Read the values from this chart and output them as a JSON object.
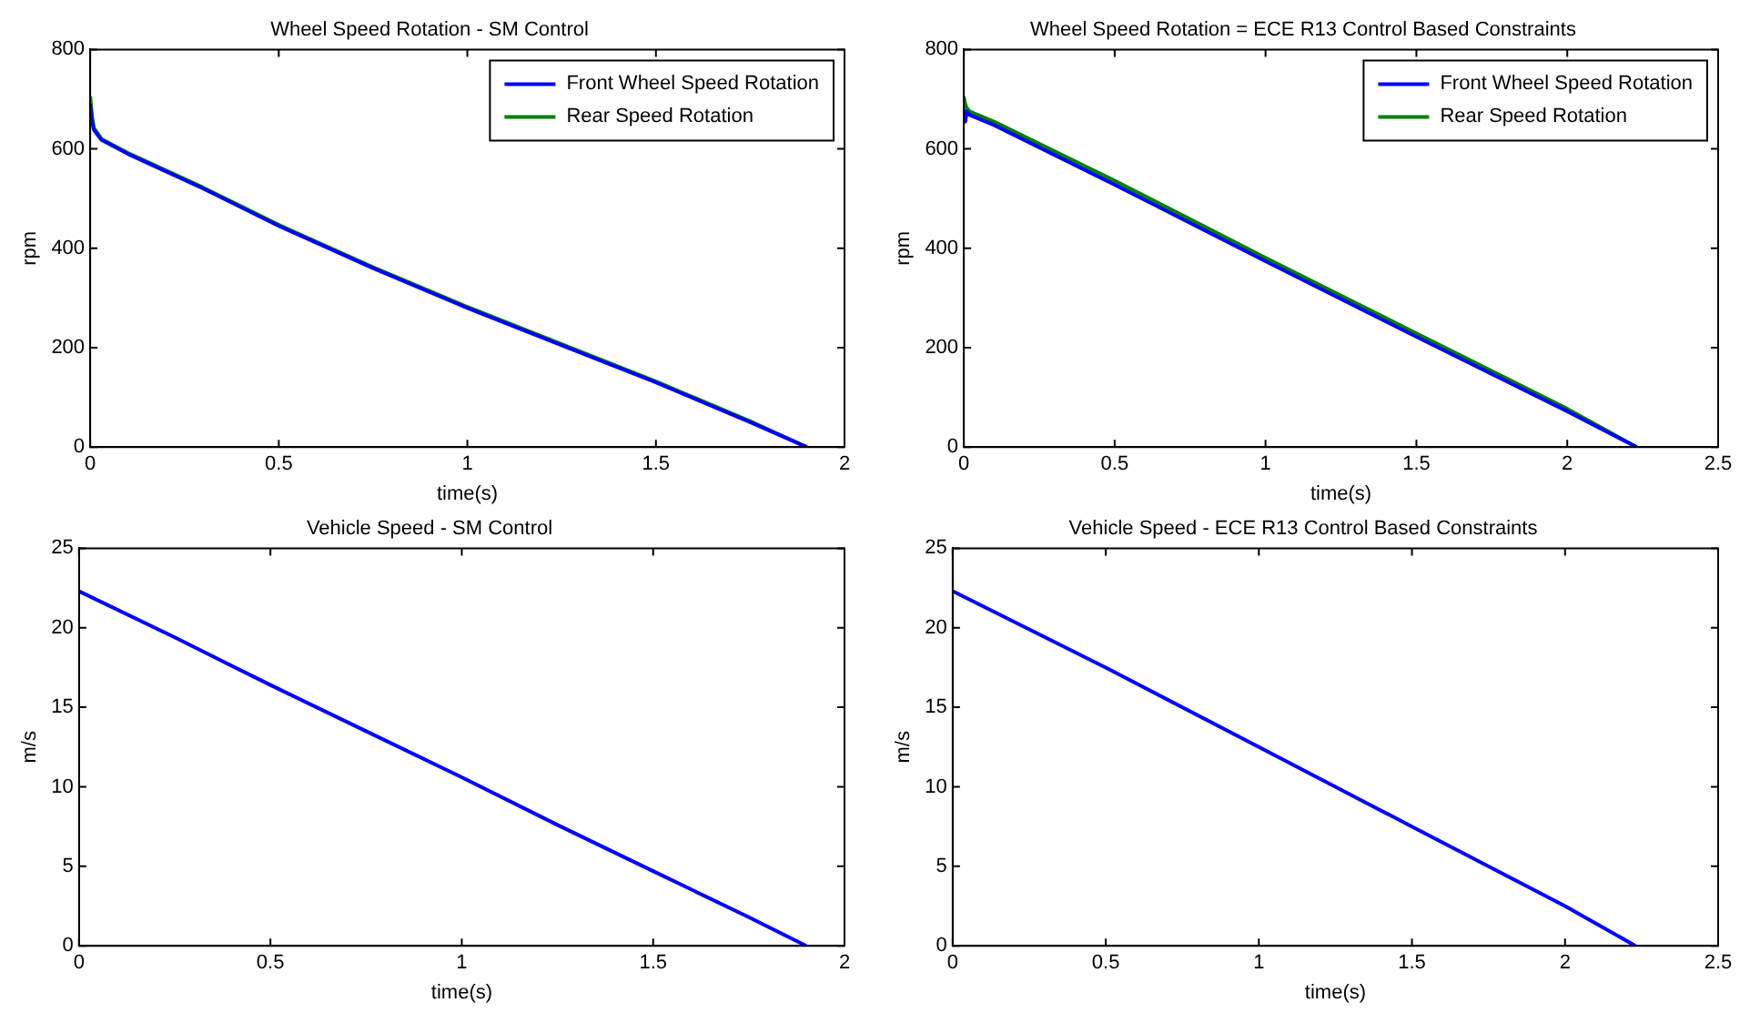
{
  "chart_data": [
    {
      "type": "line",
      "title": "Wheel Speed Rotation - SM Control",
      "xlabel": "time(s)",
      "ylabel": "rpm",
      "xlim": [
        0,
        2
      ],
      "xticks": [
        0,
        0.5,
        1,
        1.5,
        2
      ],
      "ylim": [
        0,
        800
      ],
      "yticks": [
        0,
        200,
        400,
        600,
        800
      ],
      "grid": false,
      "legend": "top right",
      "marker": "none",
      "line_style": "solid",
      "series": [
        {
          "name": "Front Wheel Speed Rotation",
          "color": "#0000ff",
          "x": [
            0,
            0.005,
            0.01,
            0.03,
            0.1,
            0.2,
            0.3,
            0.5,
            0.75,
            1,
            1.25,
            1.5,
            1.75,
            1.9
          ],
          "values": [
            690,
            655,
            638,
            618,
            590,
            555,
            520,
            445,
            360,
            280,
            205,
            130,
            50,
            0
          ]
        },
        {
          "name": "Rear Speed Rotation",
          "color": "#008000",
          "x": [
            0,
            0.005,
            0.01,
            0.03,
            0.1,
            0.2,
            0.3,
            0.5,
            0.75,
            1,
            1.25,
            1.5,
            1.75,
            1.9
          ],
          "values": [
            705,
            665,
            642,
            620,
            592,
            557,
            522,
            447,
            362,
            282,
            207,
            132,
            52,
            0
          ]
        }
      ]
    },
    {
      "type": "line",
      "title": "Wheel Speed Rotation = ECE R13 Control Based Constraints",
      "xlabel": "time(s)",
      "ylabel": "rpm",
      "xlim": [
        0,
        2.5
      ],
      "xticks": [
        0,
        0.5,
        1,
        1.5,
        2,
        2.5
      ],
      "ylim": [
        0,
        800
      ],
      "yticks": [
        0,
        200,
        400,
        600,
        800
      ],
      "grid": false,
      "legend": "top right",
      "marker": "none",
      "line_style": "solid",
      "series": [
        {
          "name": "Front Wheel Speed Rotation",
          "color": "#0000ff",
          "x": [
            0,
            0.005,
            0.01,
            0.02,
            0.1,
            0.5,
            1,
            1.5,
            2,
            2.23
          ],
          "values": [
            680,
            655,
            675,
            668,
            648,
            528,
            374,
            222,
            72,
            0
          ]
        },
        {
          "name": "Rear Speed Rotation",
          "color": "#008000",
          "x": [
            0,
            0.005,
            0.01,
            0.02,
            0.1,
            0.5,
            1,
            1.5,
            2,
            2.23
          ],
          "values": [
            705,
            690,
            682,
            675,
            655,
            536,
            381,
            229,
            77,
            0
          ]
        }
      ]
    },
    {
      "type": "line",
      "title": "Vehicle Speed - SM Control",
      "xlabel": "time(s)",
      "ylabel": "m/s",
      "xlim": [
        0,
        2
      ],
      "xticks": [
        0,
        0.5,
        1,
        1.5,
        2
      ],
      "ylim": [
        0,
        25
      ],
      "yticks": [
        0,
        5,
        10,
        15,
        20,
        25
      ],
      "grid": false,
      "legend": false,
      "marker": "none",
      "line_style": "solid",
      "series": [
        {
          "color": "#0000ff",
          "x": [
            0,
            0.25,
            0.5,
            0.75,
            1,
            1.25,
            1.5,
            1.75,
            1.9
          ],
          "values": [
            22.3,
            19.4,
            16.4,
            13.5,
            10.6,
            7.6,
            4.7,
            1.8,
            0
          ]
        }
      ]
    },
    {
      "type": "line",
      "title": "Vehicle Speed - ECE R13 Control Based Constraints",
      "xlabel": "time(s)",
      "ylabel": "m/s",
      "xlim": [
        0,
        2.5
      ],
      "xticks": [
        0,
        0.5,
        1,
        1.5,
        2,
        2.5
      ],
      "ylim": [
        0,
        25
      ],
      "yticks": [
        0,
        5,
        10,
        15,
        20,
        25
      ],
      "grid": false,
      "legend": false,
      "marker": "none",
      "line_style": "solid",
      "series": [
        {
          "color": "#0000ff",
          "x": [
            0,
            0.5,
            1,
            1.5,
            2,
            2.23
          ],
          "values": [
            22.3,
            17.5,
            12.5,
            7.5,
            2.5,
            0
          ]
        }
      ]
    }
  ]
}
